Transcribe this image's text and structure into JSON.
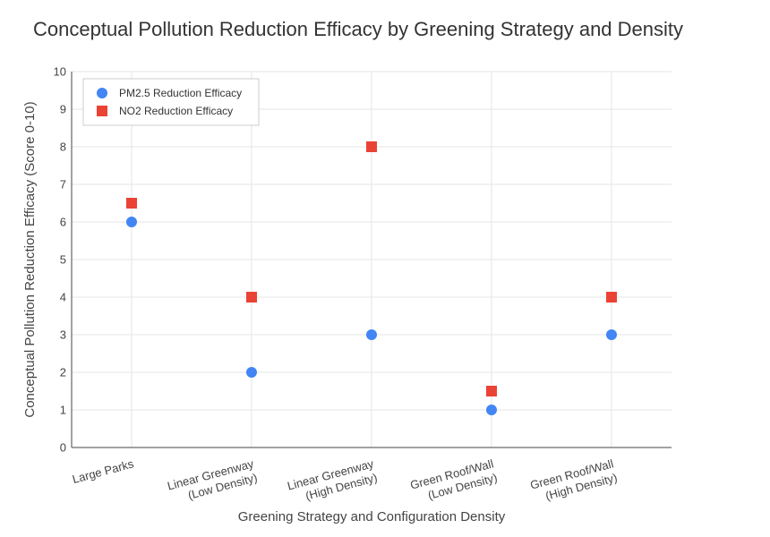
{
  "chart_data": {
    "type": "scatter",
    "title": "Conceptual Pollution Reduction Efficacy by Greening Strategy and Density",
    "xlabel": "Greening Strategy and Configuration Density",
    "ylabel": "Conceptual Pollution Reduction Efficacy (Score 0-10)",
    "categories": [
      [
        "Large Parks"
      ],
      [
        "Linear Greenway",
        "(Low Density)"
      ],
      [
        "Linear Greenway",
        "(High Density)"
      ],
      [
        "Green Roof/Wall",
        "(Low Density)"
      ],
      [
        "Green Roof/Wall",
        "(High Density)"
      ]
    ],
    "ylim": [
      0,
      10
    ],
    "yticks": [
      0,
      1,
      2,
      3,
      4,
      5,
      6,
      7,
      8,
      9,
      10
    ],
    "grid": true,
    "legend_position": "top-left",
    "series": [
      {
        "name": "PM2.5 Reduction Efficacy",
        "marker": "circle",
        "color": "#4285F4",
        "values": [
          6,
          2,
          3,
          1,
          3
        ]
      },
      {
        "name": "NO2 Reduction Efficacy",
        "marker": "square",
        "color": "#EA4335",
        "values": [
          6.5,
          4,
          8,
          1.5,
          4
        ]
      }
    ]
  }
}
